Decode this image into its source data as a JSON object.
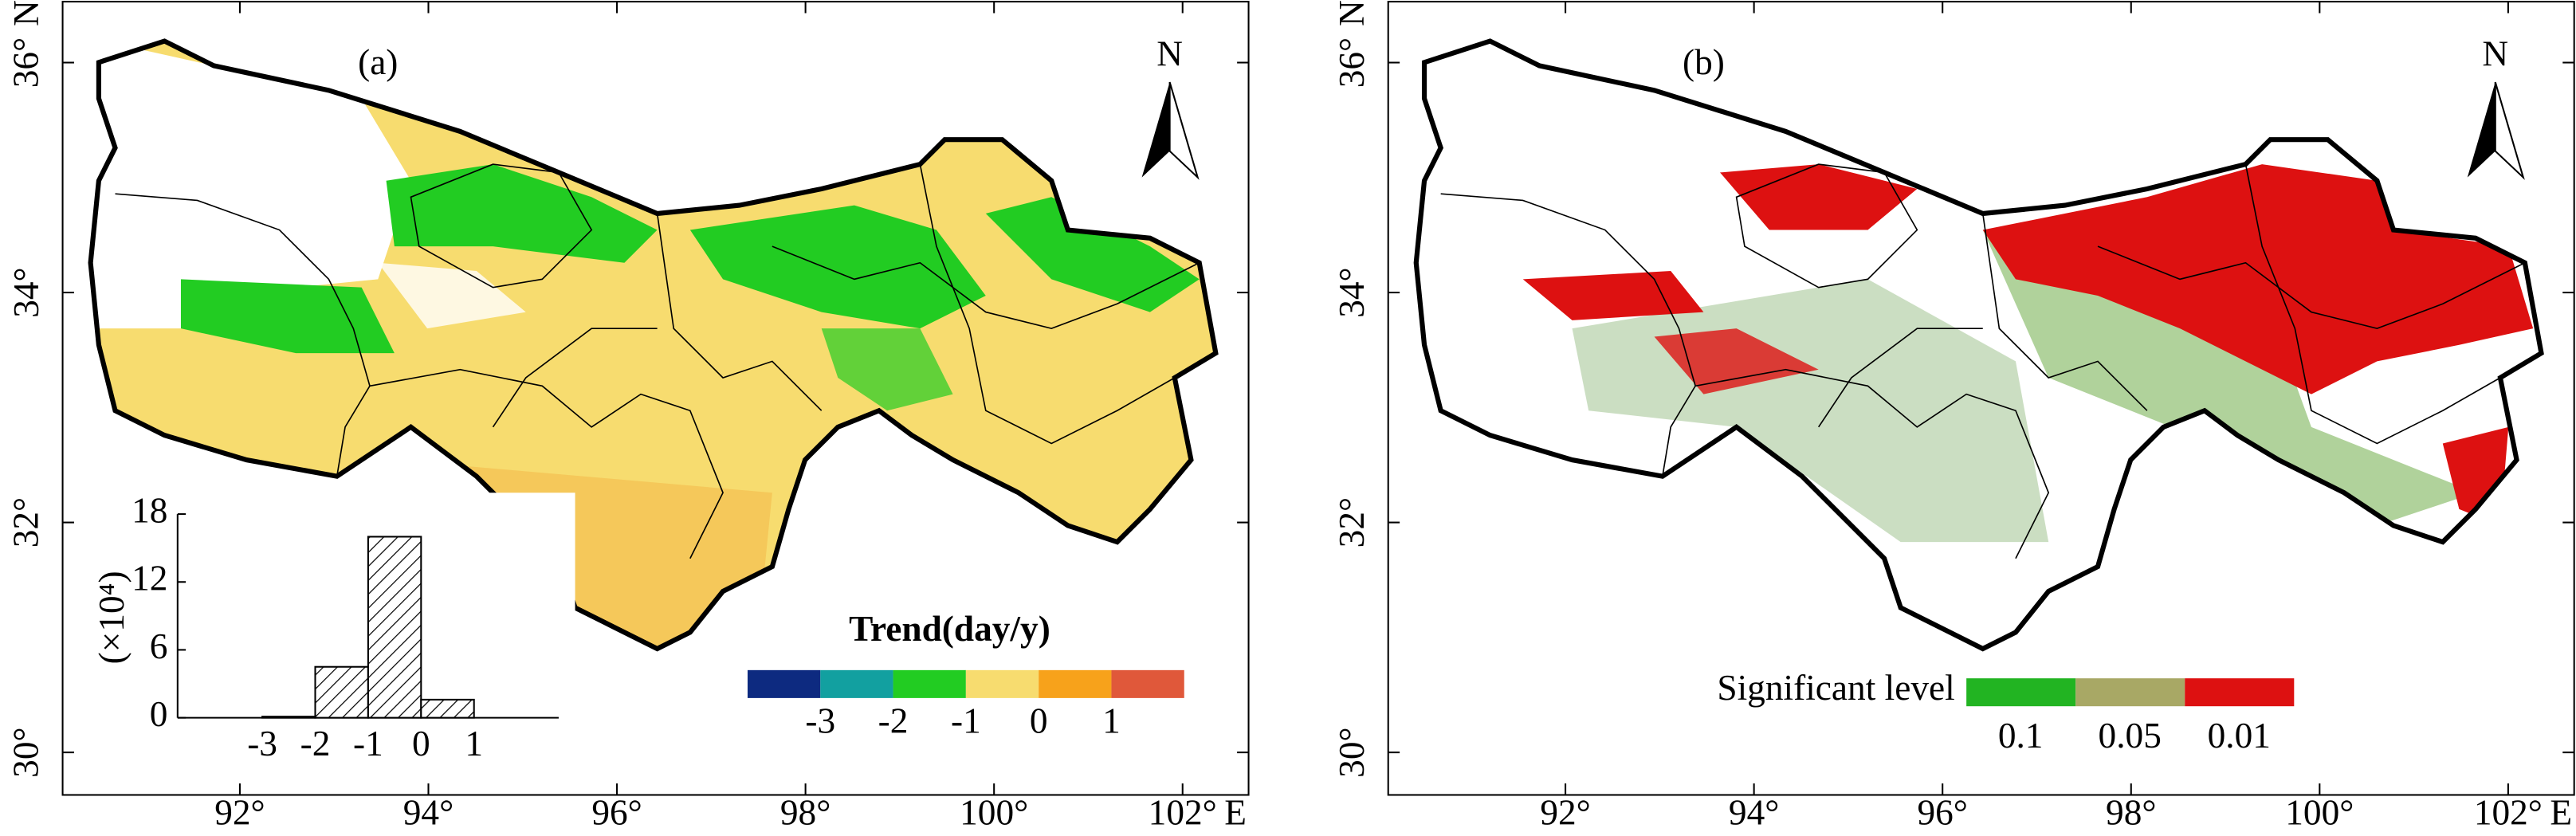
{
  "panels": [
    {
      "label": "(a)",
      "north_arrow": "N"
    },
    {
      "label": "(b)",
      "north_arrow": "N"
    }
  ],
  "map_axes": {
    "xlim": [
      90.12,
      102.7
    ],
    "ylim": [
      29.63,
      36.53
    ],
    "xticks": [
      {
        "value": 92,
        "label": "92°"
      },
      {
        "value": 94,
        "label": "94°"
      },
      {
        "value": 96,
        "label": "96°"
      },
      {
        "value": 98,
        "label": "98°"
      },
      {
        "value": 100,
        "label": "100°"
      },
      {
        "value": 102,
        "label": "102°"
      }
    ],
    "yticks": [
      {
        "value": 30,
        "label": "30°"
      },
      {
        "value": 32,
        "label": "32°"
      },
      {
        "value": 34,
        "label": "34°"
      },
      {
        "value": 36,
        "label": "36°"
      }
    ],
    "x_suffix": "E",
    "y_suffix": "N"
  },
  "trend_legend": {
    "title": "Trend(day/y)",
    "colors": [
      "#0d2a80",
      "#12a0a0",
      "#22cc22",
      "#f7dc6f",
      "#f7a21b",
      "#e0583a"
    ],
    "ticks": [
      -3,
      -2,
      -1,
      0,
      1
    ]
  },
  "significance_legend": {
    "title": "Significant level",
    "colors": [
      "#22b422",
      "#a8a865",
      "#dd1111"
    ],
    "labels": [
      "0.1",
      "0.05",
      "0.01"
    ]
  },
  "chart_data": {
    "type": "histogram",
    "ylabel": "(×10⁴)",
    "bins": [
      -3,
      -2,
      -1,
      0,
      1
    ],
    "values": [
      0.1,
      4.5,
      16,
      1.6
    ],
    "xlim": [
      -4.6,
      2.6
    ],
    "xticks": [
      -3,
      -2,
      -1,
      0,
      1
    ],
    "ylim": [
      0,
      18
    ],
    "yticks": [
      0,
      6,
      12,
      18
    ]
  }
}
